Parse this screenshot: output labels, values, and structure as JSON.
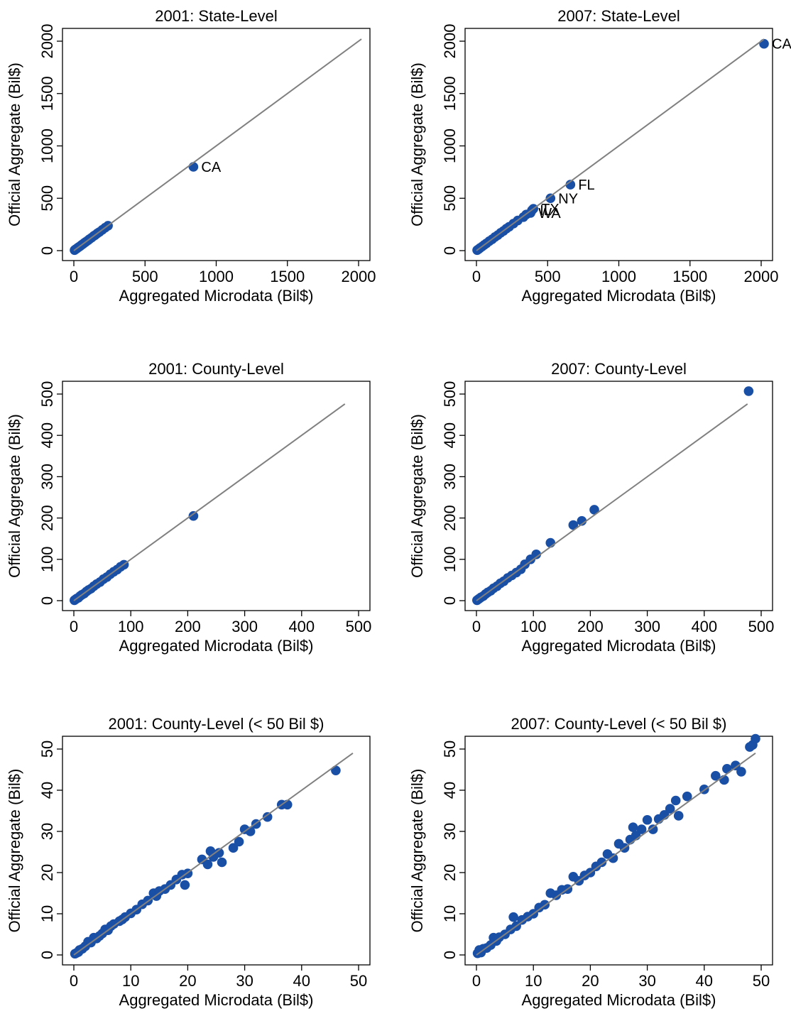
{
  "figure": {
    "colors": {
      "point": "#1a4fa6",
      "fit_line": "#808080",
      "label": "#1a4fa6",
      "axis": "#000000"
    }
  },
  "chart_data": [
    {
      "type": "scatter",
      "title": "2001: State-Level",
      "xlabel": "Aggregated Microdata (Bil$)",
      "ylabel": "Official Aggregate (Bil$)",
      "xlim": [
        0,
        2000
      ],
      "ylim": [
        0,
        2000
      ],
      "xticks": [
        0,
        500,
        1000,
        1500,
        2000
      ],
      "yticks": [
        0,
        500,
        1000,
        1500,
        2000
      ],
      "grid": false,
      "fit_line": {
        "x": [
          0,
          2020
        ],
        "y": [
          0,
          2020
        ]
      },
      "series": [
        {
          "points": [
            {
              "x": 5,
              "y": 5
            },
            {
              "x": 12,
              "y": 12
            },
            {
              "x": 20,
              "y": 19
            },
            {
              "x": 28,
              "y": 28
            },
            {
              "x": 35,
              "y": 34
            },
            {
              "x": 45,
              "y": 44
            },
            {
              "x": 55,
              "y": 55
            },
            {
              "x": 65,
              "y": 64
            },
            {
              "x": 75,
              "y": 75
            },
            {
              "x": 85,
              "y": 84
            },
            {
              "x": 100,
              "y": 99
            },
            {
              "x": 110,
              "y": 110
            },
            {
              "x": 125,
              "y": 124
            },
            {
              "x": 140,
              "y": 140
            },
            {
              "x": 150,
              "y": 149
            },
            {
              "x": 165,
              "y": 165
            },
            {
              "x": 180,
              "y": 178
            },
            {
              "x": 200,
              "y": 199
            },
            {
              "x": 220,
              "y": 219
            },
            {
              "x": 240,
              "y": 238
            },
            {
              "x": 840,
              "y": 800,
              "label": "CA"
            }
          ]
        }
      ]
    },
    {
      "type": "scatter",
      "title": "2007: State-Level",
      "xlabel": "Aggregated Microdata (Bil$)",
      "ylabel": "Official Aggregate (Bil$)",
      "xlim": [
        0,
        2000
      ],
      "ylim": [
        0,
        2000
      ],
      "xticks": [
        0,
        500,
        1000,
        1500,
        2000
      ],
      "yticks": [
        0,
        500,
        1000,
        1500,
        2000
      ],
      "grid": false,
      "fit_line": {
        "x": [
          0,
          2020
        ],
        "y": [
          0,
          2020
        ]
      },
      "series": [
        {
          "points": [
            {
              "x": 5,
              "y": 5
            },
            {
              "x": 15,
              "y": 14
            },
            {
              "x": 25,
              "y": 25
            },
            {
              "x": 40,
              "y": 39
            },
            {
              "x": 55,
              "y": 55
            },
            {
              "x": 70,
              "y": 69
            },
            {
              "x": 90,
              "y": 90
            },
            {
              "x": 110,
              "y": 108
            },
            {
              "x": 130,
              "y": 130
            },
            {
              "x": 150,
              "y": 148
            },
            {
              "x": 170,
              "y": 170
            },
            {
              "x": 190,
              "y": 188
            },
            {
              "x": 210,
              "y": 210
            },
            {
              "x": 230,
              "y": 228
            },
            {
              "x": 260,
              "y": 258
            },
            {
              "x": 290,
              "y": 288
            },
            {
              "x": 330,
              "y": 320
            },
            {
              "x": 350,
              "y": 345
            },
            {
              "x": 380,
              "y": 360,
              "label": "WA"
            },
            {
              "x": 390,
              "y": 385,
              "label": "IL"
            },
            {
              "x": 400,
              "y": 400,
              "label": "TX"
            },
            {
              "x": 520,
              "y": 500,
              "label": "NY"
            },
            {
              "x": 660,
              "y": 630,
              "label": "FL"
            },
            {
              "x": 2020,
              "y": 1975,
              "label": "CA"
            }
          ]
        }
      ]
    },
    {
      "type": "scatter",
      "title": "2001: County-Level",
      "xlabel": "Aggregated Microdata (Bil$)",
      "ylabel": "Official Aggregate (Bil$)",
      "xlim": [
        0,
        500
      ],
      "ylim": [
        0,
        500
      ],
      "xticks": [
        0,
        100,
        200,
        300,
        400,
        500
      ],
      "yticks": [
        0,
        100,
        200,
        300,
        400,
        500
      ],
      "grid": false,
      "fit_line": {
        "x": [
          0,
          476
        ],
        "y": [
          0,
          476
        ]
      },
      "series": [
        {
          "points": [
            {
              "x": 1,
              "y": 1
            },
            {
              "x": 3,
              "y": 3
            },
            {
              "x": 5,
              "y": 5
            },
            {
              "x": 8,
              "y": 7
            },
            {
              "x": 11,
              "y": 11
            },
            {
              "x": 14,
              "y": 14
            },
            {
              "x": 18,
              "y": 17
            },
            {
              "x": 22,
              "y": 22
            },
            {
              "x": 26,
              "y": 26
            },
            {
              "x": 30,
              "y": 29
            },
            {
              "x": 35,
              "y": 35
            },
            {
              "x": 40,
              "y": 40
            },
            {
              "x": 46,
              "y": 45
            },
            {
              "x": 52,
              "y": 52
            },
            {
              "x": 58,
              "y": 57
            },
            {
              "x": 64,
              "y": 64
            },
            {
              "x": 70,
              "y": 70
            },
            {
              "x": 76,
              "y": 75
            },
            {
              "x": 82,
              "y": 82
            },
            {
              "x": 88,
              "y": 87
            },
            {
              "x": 210,
              "y": 205
            }
          ]
        }
      ]
    },
    {
      "type": "scatter",
      "title": "2007: County-Level",
      "xlabel": "Aggregated Microdata (Bil$)",
      "ylabel": "Official Aggregate (Bil$)",
      "xlim": [
        0,
        500
      ],
      "ylim": [
        0,
        500
      ],
      "xticks": [
        0,
        100,
        200,
        300,
        400,
        500
      ],
      "yticks": [
        0,
        100,
        200,
        300,
        400,
        500
      ],
      "grid": false,
      "fit_line": {
        "x": [
          0,
          476
        ],
        "y": [
          0,
          476
        ]
      },
      "series": [
        {
          "points": [
            {
              "x": 1,
              "y": 1
            },
            {
              "x": 3,
              "y": 3
            },
            {
              "x": 5,
              "y": 5
            },
            {
              "x": 8,
              "y": 8
            },
            {
              "x": 12,
              "y": 11
            },
            {
              "x": 16,
              "y": 16
            },
            {
              "x": 20,
              "y": 20
            },
            {
              "x": 25,
              "y": 24
            },
            {
              "x": 30,
              "y": 30
            },
            {
              "x": 36,
              "y": 35
            },
            {
              "x": 42,
              "y": 42
            },
            {
              "x": 48,
              "y": 47
            },
            {
              "x": 55,
              "y": 55
            },
            {
              "x": 62,
              "y": 61
            },
            {
              "x": 70,
              "y": 68
            },
            {
              "x": 78,
              "y": 76
            },
            {
              "x": 85,
              "y": 88
            },
            {
              "x": 95,
              "y": 100
            },
            {
              "x": 105,
              "y": 112
            },
            {
              "x": 130,
              "y": 140
            },
            {
              "x": 170,
              "y": 183
            },
            {
              "x": 185,
              "y": 193
            },
            {
              "x": 207,
              "y": 220
            },
            {
              "x": 478,
              "y": 507
            }
          ]
        }
      ]
    },
    {
      "type": "scatter",
      "title": "2001: County-Level (< 50 Bil $)",
      "xlabel": "Aggregated Microdata (Bil$)",
      "ylabel": "Official Aggregate (Bil$)",
      "xlim": [
        0,
        50
      ],
      "ylim": [
        0,
        50
      ],
      "xticks": [
        0,
        10,
        20,
        30,
        40,
        50
      ],
      "yticks": [
        0,
        10,
        20,
        30,
        40,
        50
      ],
      "grid": false,
      "fit_line": {
        "x": [
          0,
          49
        ],
        "y": [
          0,
          49
        ]
      },
      "series": [
        {
          "points": [
            {
              "x": 0.2,
              "y": 0.3
            },
            {
              "x": 0.5,
              "y": 0.5
            },
            {
              "x": 0.8,
              "y": 0.7
            },
            {
              "x": 1.0,
              "y": 1.2
            },
            {
              "x": 1.5,
              "y": 1.5
            },
            {
              "x": 2.0,
              "y": 2.1
            },
            {
              "x": 2.5,
              "y": 3.2
            },
            {
              "x": 3.0,
              "y": 3.0
            },
            {
              "x": 3.5,
              "y": 4.2
            },
            {
              "x": 4.0,
              "y": 4.0
            },
            {
              "x": 4.5,
              "y": 4.6
            },
            {
              "x": 5.0,
              "y": 5.2
            },
            {
              "x": 5.5,
              "y": 6.2
            },
            {
              "x": 6.0,
              "y": 6.0
            },
            {
              "x": 6.5,
              "y": 7.0
            },
            {
              "x": 7.0,
              "y": 7.5
            },
            {
              "x": 8.0,
              "y": 8.2
            },
            {
              "x": 8.5,
              "y": 8.6
            },
            {
              "x": 9.0,
              "y": 9.2
            },
            {
              "x": 10.0,
              "y": 10.1
            },
            {
              "x": 11.0,
              "y": 11.0
            },
            {
              "x": 12.0,
              "y": 12.3
            },
            {
              "x": 13.0,
              "y": 13.2
            },
            {
              "x": 14.0,
              "y": 15.0
            },
            {
              "x": 14.5,
              "y": 14.3
            },
            {
              "x": 15.0,
              "y": 15.5
            },
            {
              "x": 16.0,
              "y": 16.0
            },
            {
              "x": 17.0,
              "y": 17.0
            },
            {
              "x": 18.0,
              "y": 18.3
            },
            {
              "x": 19.0,
              "y": 19.5
            },
            {
              "x": 19.5,
              "y": 17.0
            },
            {
              "x": 20.0,
              "y": 19.8
            },
            {
              "x": 22.5,
              "y": 23.2
            },
            {
              "x": 23.5,
              "y": 22.0
            },
            {
              "x": 24.0,
              "y": 25.2
            },
            {
              "x": 24.5,
              "y": 23.8
            },
            {
              "x": 25.5,
              "y": 24.8
            },
            {
              "x": 26.0,
              "y": 22.5
            },
            {
              "x": 28.0,
              "y": 26.0
            },
            {
              "x": 29.0,
              "y": 27.5
            },
            {
              "x": 30.0,
              "y": 30.5
            },
            {
              "x": 31.0,
              "y": 30.0
            },
            {
              "x": 32.0,
              "y": 31.8
            },
            {
              "x": 34.0,
              "y": 33.5
            },
            {
              "x": 36.5,
              "y": 36.5
            },
            {
              "x": 37.5,
              "y": 36.5
            },
            {
              "x": 46.0,
              "y": 44.8
            }
          ]
        }
      ]
    },
    {
      "type": "scatter",
      "title": "2007: County-Level (< 50 Bil $)",
      "xlabel": "Aggregated Microdata (Bil$)",
      "ylabel": "Official Aggregate (Bil$)",
      "xlim": [
        0,
        50
      ],
      "ylim": [
        0,
        50
      ],
      "xticks": [
        0,
        10,
        20,
        30,
        40,
        50
      ],
      "yticks": [
        0,
        10,
        20,
        30,
        40,
        50
      ],
      "grid": false,
      "fit_line": {
        "x": [
          0,
          49
        ],
        "y": [
          0,
          49
        ]
      },
      "series": [
        {
          "points": [
            {
              "x": 0.2,
              "y": 0.4
            },
            {
              "x": 0.5,
              "y": 1.2
            },
            {
              "x": 0.8,
              "y": 0.6
            },
            {
              "x": 1.2,
              "y": 1.5
            },
            {
              "x": 1.8,
              "y": 1.7
            },
            {
              "x": 2.5,
              "y": 2.4
            },
            {
              "x": 3.0,
              "y": 4.2
            },
            {
              "x": 3.5,
              "y": 3.4
            },
            {
              "x": 4.0,
              "y": 4.3
            },
            {
              "x": 5.0,
              "y": 5.0
            },
            {
              "x": 6.0,
              "y": 6.2
            },
            {
              "x": 6.5,
              "y": 9.2
            },
            {
              "x": 7.0,
              "y": 7.0
            },
            {
              "x": 8.0,
              "y": 8.5
            },
            {
              "x": 9.0,
              "y": 9.3
            },
            {
              "x": 10.0,
              "y": 10.0
            },
            {
              "x": 11.0,
              "y": 11.5
            },
            {
              "x": 12.0,
              "y": 12.2
            },
            {
              "x": 13.0,
              "y": 15.0
            },
            {
              "x": 14.0,
              "y": 14.5
            },
            {
              "x": 15.0,
              "y": 15.8
            },
            {
              "x": 16.0,
              "y": 16.0
            },
            {
              "x": 17.0,
              "y": 19.0
            },
            {
              "x": 18.0,
              "y": 18.0
            },
            {
              "x": 19.0,
              "y": 19.3
            },
            {
              "x": 20.0,
              "y": 20.0
            },
            {
              "x": 21.0,
              "y": 21.5
            },
            {
              "x": 22.0,
              "y": 22.5
            },
            {
              "x": 23.0,
              "y": 24.5
            },
            {
              "x": 24.0,
              "y": 23.5
            },
            {
              "x": 25.0,
              "y": 27.0
            },
            {
              "x": 26.0,
              "y": 26.0
            },
            {
              "x": 27.0,
              "y": 28.0
            },
            {
              "x": 27.5,
              "y": 31.0
            },
            {
              "x": 28.0,
              "y": 29.0
            },
            {
              "x": 29.0,
              "y": 30.5
            },
            {
              "x": 30.0,
              "y": 32.8
            },
            {
              "x": 31.0,
              "y": 30.5
            },
            {
              "x": 32.0,
              "y": 33.0
            },
            {
              "x": 33.0,
              "y": 34.0
            },
            {
              "x": 34.0,
              "y": 35.5
            },
            {
              "x": 35.0,
              "y": 37.5
            },
            {
              "x": 35.5,
              "y": 33.8
            },
            {
              "x": 37.0,
              "y": 38.5
            },
            {
              "x": 40.0,
              "y": 40.2
            },
            {
              "x": 42.0,
              "y": 43.5
            },
            {
              "x": 43.5,
              "y": 42.5
            },
            {
              "x": 44.0,
              "y": 45.2
            },
            {
              "x": 45.5,
              "y": 46.0
            },
            {
              "x": 46.5,
              "y": 44.5
            },
            {
              "x": 48.0,
              "y": 50.5
            },
            {
              "x": 48.5,
              "y": 51.0
            },
            {
              "x": 49.0,
              "y": 52.5
            }
          ]
        }
      ]
    }
  ]
}
